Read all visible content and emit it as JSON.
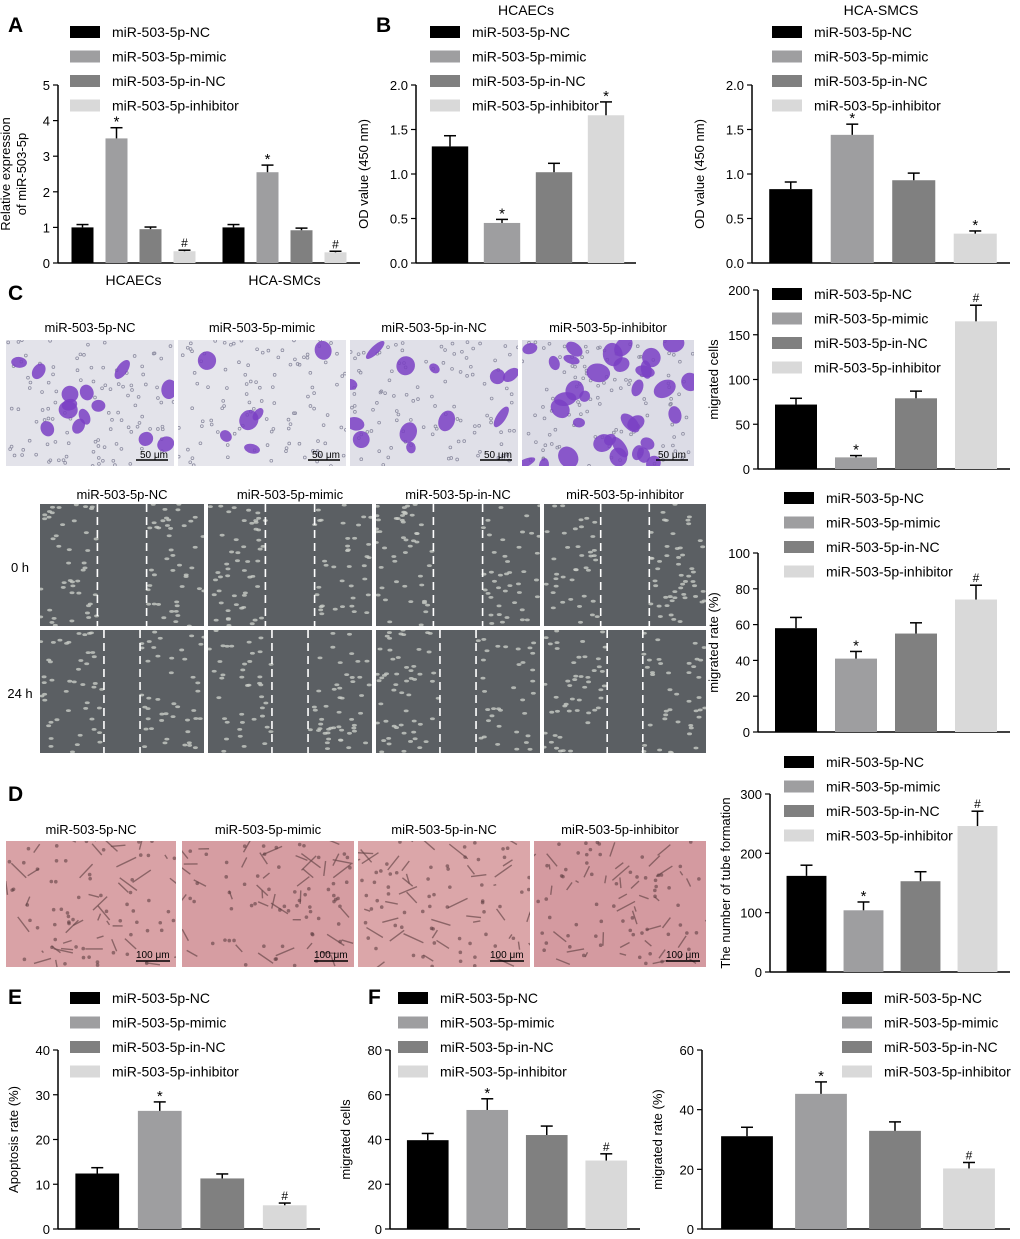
{
  "legend_labels": [
    "miR-503-5p-NC",
    "miR-503-5p-mimic",
    "miR-503-5p-in-NC",
    "miR-503-5p-inhibitor"
  ],
  "colors": {
    "nc": "#000000",
    "mimic": "#9e9ea0",
    "in_nc": "#808080",
    "inhibitor": "#d9d9d9"
  },
  "panel_labels": {
    "A": "A",
    "B": "B",
    "C": "C",
    "D": "D",
    "E": "E",
    "F": "F"
  },
  "microscopy": {
    "c_titles": [
      "miR-503-5p-NC",
      "miR-503-5p-mimic",
      "miR-503-5p-in-NC",
      "miR-503-5p-inhibitor"
    ],
    "c_scale": "50 μm",
    "wound_titles": [
      "miR-503-5p-NC",
      "miR-503-5p-mimic",
      "miR-503-5p-in-NC",
      "miR-503-5p-inhibitor"
    ],
    "wound_rows": [
      "0 h",
      "24 h"
    ],
    "d_titles": [
      "miR-503-5p-NC",
      "miR-503-5p-mimic",
      "miR-503-5p-in-NC",
      "miR-503-5p-inhibitor"
    ],
    "d_scale": "100 μm"
  },
  "chart_data": [
    {
      "id": "A",
      "type": "bar",
      "ylabel": "Relative expression\nof miR-503-5p",
      "ylim": [
        0,
        5
      ],
      "yticks": [
        0,
        1,
        2,
        3,
        4,
        5
      ],
      "categories": [
        "HCAECs",
        "HCA-SMCs"
      ],
      "series": [
        {
          "name": "miR-503-5p-NC",
          "values": [
            1.0,
            1.0
          ],
          "errors": [
            0.08,
            0.08
          ],
          "marks": [
            "",
            ""
          ]
        },
        {
          "name": "miR-503-5p-mimic",
          "values": [
            3.5,
            2.55
          ],
          "errors": [
            0.3,
            0.2
          ],
          "marks": [
            "*",
            "*"
          ]
        },
        {
          "name": "miR-503-5p-in-NC",
          "values": [
            0.95,
            0.92
          ],
          "errors": [
            0.06,
            0.06
          ],
          "marks": [
            "",
            ""
          ]
        },
        {
          "name": "miR-503-5p-inhibitor",
          "values": [
            0.33,
            0.3
          ],
          "errors": [
            0.03,
            0.03
          ],
          "marks": [
            "#",
            "#"
          ]
        }
      ]
    },
    {
      "id": "B1",
      "type": "bar",
      "title": "HCAECs",
      "ylabel": "OD value (450 nm)",
      "ylim": [
        0,
        2.0
      ],
      "yticks": [
        0.0,
        0.5,
        1.0,
        1.5,
        2.0
      ],
      "values": [
        1.31,
        0.45,
        1.02,
        1.66
      ],
      "errors": [
        0.12,
        0.04,
        0.1,
        0.15
      ],
      "marks": [
        "",
        "*",
        "",
        "*"
      ]
    },
    {
      "id": "B2",
      "type": "bar",
      "title": "HCA-SMCS",
      "ylabel": "OD value (450 nm)",
      "ylim": [
        0,
        2.0
      ],
      "yticks": [
        0.0,
        0.5,
        1.0,
        1.5,
        2.0
      ],
      "values": [
        0.83,
        1.44,
        0.93,
        0.33
      ],
      "errors": [
        0.08,
        0.12,
        0.08,
        0.03
      ],
      "marks": [
        "",
        "*",
        "",
        "*"
      ]
    },
    {
      "id": "C1",
      "type": "bar",
      "ylabel": "migrated cells",
      "ylim": [
        0,
        200
      ],
      "yticks": [
        0,
        50,
        100,
        150,
        200
      ],
      "values": [
        72,
        13,
        79,
        165
      ],
      "errors": [
        7,
        2,
        8,
        18
      ],
      "marks": [
        "",
        "*",
        "",
        "#"
      ]
    },
    {
      "id": "C2",
      "type": "bar",
      "ylabel": "migrated rate (%)",
      "ylim": [
        0,
        100
      ],
      "yticks": [
        0,
        20,
        40,
        60,
        80,
        100
      ],
      "values": [
        58,
        41,
        55,
        74
      ],
      "errors": [
        6,
        4,
        6,
        8
      ],
      "marks": [
        "",
        "*",
        "",
        "#"
      ]
    },
    {
      "id": "D",
      "type": "bar",
      "ylabel": "The number of tube formation",
      "ylim": [
        0,
        300
      ],
      "yticks": [
        0,
        100,
        200,
        300
      ],
      "values": [
        162,
        104,
        153,
        246
      ],
      "errors": [
        18,
        14,
        16,
        25
      ],
      "marks": [
        "",
        "*",
        "",
        "#"
      ]
    },
    {
      "id": "E",
      "type": "bar",
      "ylabel": "Apoptosis rate (%)",
      "ylim": [
        0,
        40
      ],
      "yticks": [
        0,
        10,
        20,
        30,
        40
      ],
      "values": [
        12.4,
        26.4,
        11.3,
        5.3
      ],
      "errors": [
        1.3,
        2.0,
        1.0,
        0.5
      ],
      "marks": [
        "",
        "*",
        "",
        "#"
      ]
    },
    {
      "id": "F1",
      "type": "bar",
      "ylabel": "migrated cells",
      "ylim": [
        0,
        80
      ],
      "yticks": [
        0,
        20,
        40,
        60,
        80
      ],
      "values": [
        39.7,
        53.2,
        42.0,
        30.6
      ],
      "errors": [
        3.0,
        5.0,
        4.0,
        3.0
      ],
      "marks": [
        "",
        "*",
        "",
        "#"
      ]
    },
    {
      "id": "F2",
      "type": "bar",
      "ylabel": "migrated rate (%)",
      "ylim": [
        0,
        60
      ],
      "yticks": [
        0,
        20,
        40,
        60
      ],
      "values": [
        31.1,
        45.3,
        32.9,
        20.3
      ],
      "errors": [
        3.0,
        4.0,
        3.0,
        2.0
      ],
      "marks": [
        "",
        "*",
        "",
        "#"
      ]
    }
  ]
}
